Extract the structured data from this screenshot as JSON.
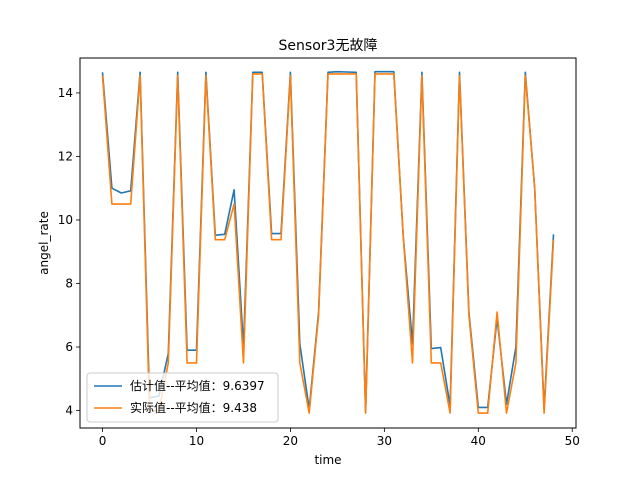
{
  "chart_data": {
    "type": "line",
    "title": "Sensor3无故障",
    "xlabel": "time",
    "ylabel": "angel_rate",
    "xlim": [
      -2.4,
      50.4
    ],
    "ylim": [
      3.45,
      15.1
    ],
    "x_ticks": [
      0,
      10,
      20,
      30,
      40,
      50
    ],
    "y_ticks": [
      4,
      6,
      8,
      10,
      12,
      14
    ],
    "grid": false,
    "legend_position": "lower-left",
    "x": [
      0,
      1,
      2,
      3,
      4,
      5,
      6,
      7,
      8,
      9,
      10,
      11,
      12,
      13,
      14,
      15,
      16,
      17,
      18,
      19,
      20,
      21,
      22,
      23,
      24,
      25,
      26,
      27,
      28,
      29,
      30,
      31,
      32,
      33,
      34,
      35,
      36,
      37,
      38,
      39,
      40,
      41,
      42,
      43,
      44,
      45,
      46,
      47,
      48
    ],
    "series": [
      {
        "name": "估计值--平均值：9.6397",
        "color": "#1f77b4",
        "values": [
          14.65,
          11.0,
          10.85,
          10.92,
          14.65,
          4.4,
          4.45,
          5.8,
          14.65,
          5.9,
          5.9,
          14.65,
          9.52,
          9.55,
          10.95,
          6.0,
          14.65,
          14.65,
          9.57,
          9.57,
          14.65,
          6.1,
          4.05,
          7.1,
          14.65,
          14.67,
          14.66,
          14.65,
          3.95,
          14.67,
          14.67,
          14.67,
          9.5,
          6.1,
          14.65,
          5.95,
          5.98,
          4.15,
          14.65,
          7.1,
          4.1,
          4.1,
          6.9,
          4.2,
          6.0,
          14.65,
          11.0,
          4.05,
          9.55
        ]
      },
      {
        "name": "实际值--平均值：9.438",
        "color": "#ff7f0e",
        "values": [
          14.55,
          10.5,
          10.5,
          10.5,
          14.55,
          4.0,
          4.0,
          5.5,
          14.55,
          5.5,
          5.5,
          14.55,
          9.38,
          9.38,
          10.5,
          5.5,
          14.6,
          14.6,
          9.38,
          9.38,
          14.55,
          5.5,
          3.92,
          7.0,
          14.6,
          14.6,
          14.6,
          14.6,
          3.92,
          14.6,
          14.6,
          14.6,
          9.5,
          5.5,
          14.55,
          5.5,
          5.5,
          3.92,
          14.55,
          7.0,
          3.92,
          3.92,
          7.1,
          3.92,
          5.5,
          14.55,
          11.0,
          3.92,
          9.38
        ]
      }
    ]
  }
}
